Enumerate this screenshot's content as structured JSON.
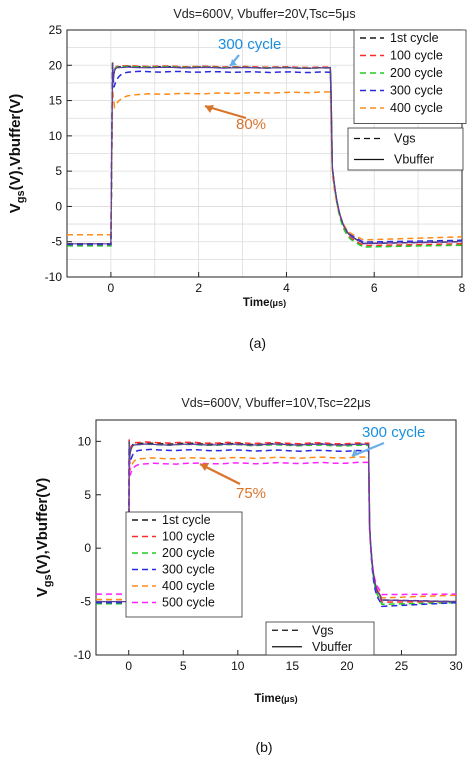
{
  "chart_data": [
    {
      "type": "line",
      "title": "Vds=600V, Vbuffer=20V,Tsc=5μs",
      "ylabel_main": "V",
      "ylabel_sub": "gs",
      "ylabel_rest": "(V),Vbuffer(V)",
      "xlabel_main": "Time",
      "xlabel_unit": "(μs)",
      "caption": "(a)",
      "xlim": [
        -1,
        8
      ],
      "ylim": [
        -10,
        25
      ],
      "xticks": [
        0,
        2,
        4,
        6,
        8
      ],
      "yticks": [
        -10,
        -5,
        0,
        5,
        10,
        15,
        20,
        25
      ],
      "grid": true,
      "legend_placement": "top-right",
      "legend_style_placement": "right",
      "legend_styles": [
        "Vgs",
        "Vbuffer"
      ],
      "annotations": [
        {
          "text": "300 cycle",
          "color": "#1a8fe0"
        },
        {
          "text": "80%",
          "color": "#d9742b"
        }
      ],
      "series": [
        {
          "name": "1st cycle",
          "color": "#1a1a1a",
          "low": -5.3,
          "high": 19.8,
          "rise_settle": 0.1,
          "end_high": 19.6,
          "tail_start": -5.1,
          "tail_end": -5.0
        },
        {
          "name": "100 cycle",
          "color": "#ff2a2a",
          "low": -5.5,
          "high": 19.9,
          "rise_settle": 0.1,
          "end_high": 19.7,
          "tail_start": -5.4,
          "tail_end": -5.3
        },
        {
          "name": "200 cycle",
          "color": "#22cc22",
          "low": -5.6,
          "high": 19.8,
          "rise_settle": 0.1,
          "end_high": 19.6,
          "tail_start": -5.6,
          "tail_end": -5.5
        },
        {
          "name": "300 cycle",
          "color": "#2a2ae0",
          "low": -5.4,
          "high": 19.1,
          "rise_settle": 0.4,
          "end_high": 19.0,
          "tail_start": -4.9,
          "tail_end": -4.8
        },
        {
          "name": "400 cycle",
          "color": "#ff8c1a",
          "low": -4.0,
          "high": 15.9,
          "rise_settle": 0.6,
          "end_high": 16.2,
          "tail_start": -4.6,
          "tail_end": -4.3
        }
      ]
    },
    {
      "type": "line",
      "title": "Vds=600V, Vbuffer=10V,Tsc=22μs",
      "ylabel_main": "V",
      "ylabel_sub": "gs",
      "ylabel_rest": "(V),Vbuffer(V)",
      "xlabel_main": "Time",
      "xlabel_unit": "(μs)",
      "caption": "(b)",
      "xlim": [
        -3,
        30
      ],
      "ylim": [
        -10,
        12
      ],
      "xticks": [
        0,
        5,
        10,
        15,
        20,
        25,
        30
      ],
      "yticks": [
        -10,
        -5,
        0,
        5,
        10
      ],
      "grid": false,
      "legend_placement": "center-left",
      "legend_style_placement": "bottom-right",
      "legend_styles": [
        "Vgs",
        "Vbuffer"
      ],
      "annotations": [
        {
          "text": "300 cycle",
          "color": "#1a8fe0"
        },
        {
          "text": "75%",
          "color": "#d9742b"
        }
      ],
      "series": [
        {
          "name": "1st cycle",
          "color": "#1a1a1a",
          "low": -5.0,
          "high": 9.8,
          "rise_settle": 0.5,
          "end_high": 9.7,
          "tail_start": -4.7,
          "tail_end": -5.0
        },
        {
          "name": "100 cycle",
          "color": "#ff2a2a",
          "low": -5.1,
          "high": 9.9,
          "rise_settle": 0.5,
          "end_high": 9.8,
          "tail_start": -4.9,
          "tail_end": -5.0
        },
        {
          "name": "200 cycle",
          "color": "#22cc22",
          "low": -5.2,
          "high": 9.7,
          "rise_settle": 0.5,
          "end_high": 9.6,
          "tail_start": -5.1,
          "tail_end": -5.1
        },
        {
          "name": "300 cycle",
          "color": "#2a2ae0",
          "low": -5.1,
          "high": 9.2,
          "rise_settle": 1.0,
          "end_high": 9.1,
          "tail_start": -5.3,
          "tail_end": -5.1
        },
        {
          "name": "400 cycle",
          "color": "#ff8c1a",
          "low": -4.8,
          "high": 8.4,
          "rise_settle": 1.0,
          "end_high": 8.5,
          "tail_start": -4.5,
          "tail_end": -4.4
        },
        {
          "name": "500 cycle",
          "color": "#ff22ff",
          "low": -4.3,
          "high": 7.9,
          "rise_settle": 1.2,
          "end_high": 8.0,
          "tail_start": -4.2,
          "tail_end": -4.3
        }
      ]
    }
  ]
}
